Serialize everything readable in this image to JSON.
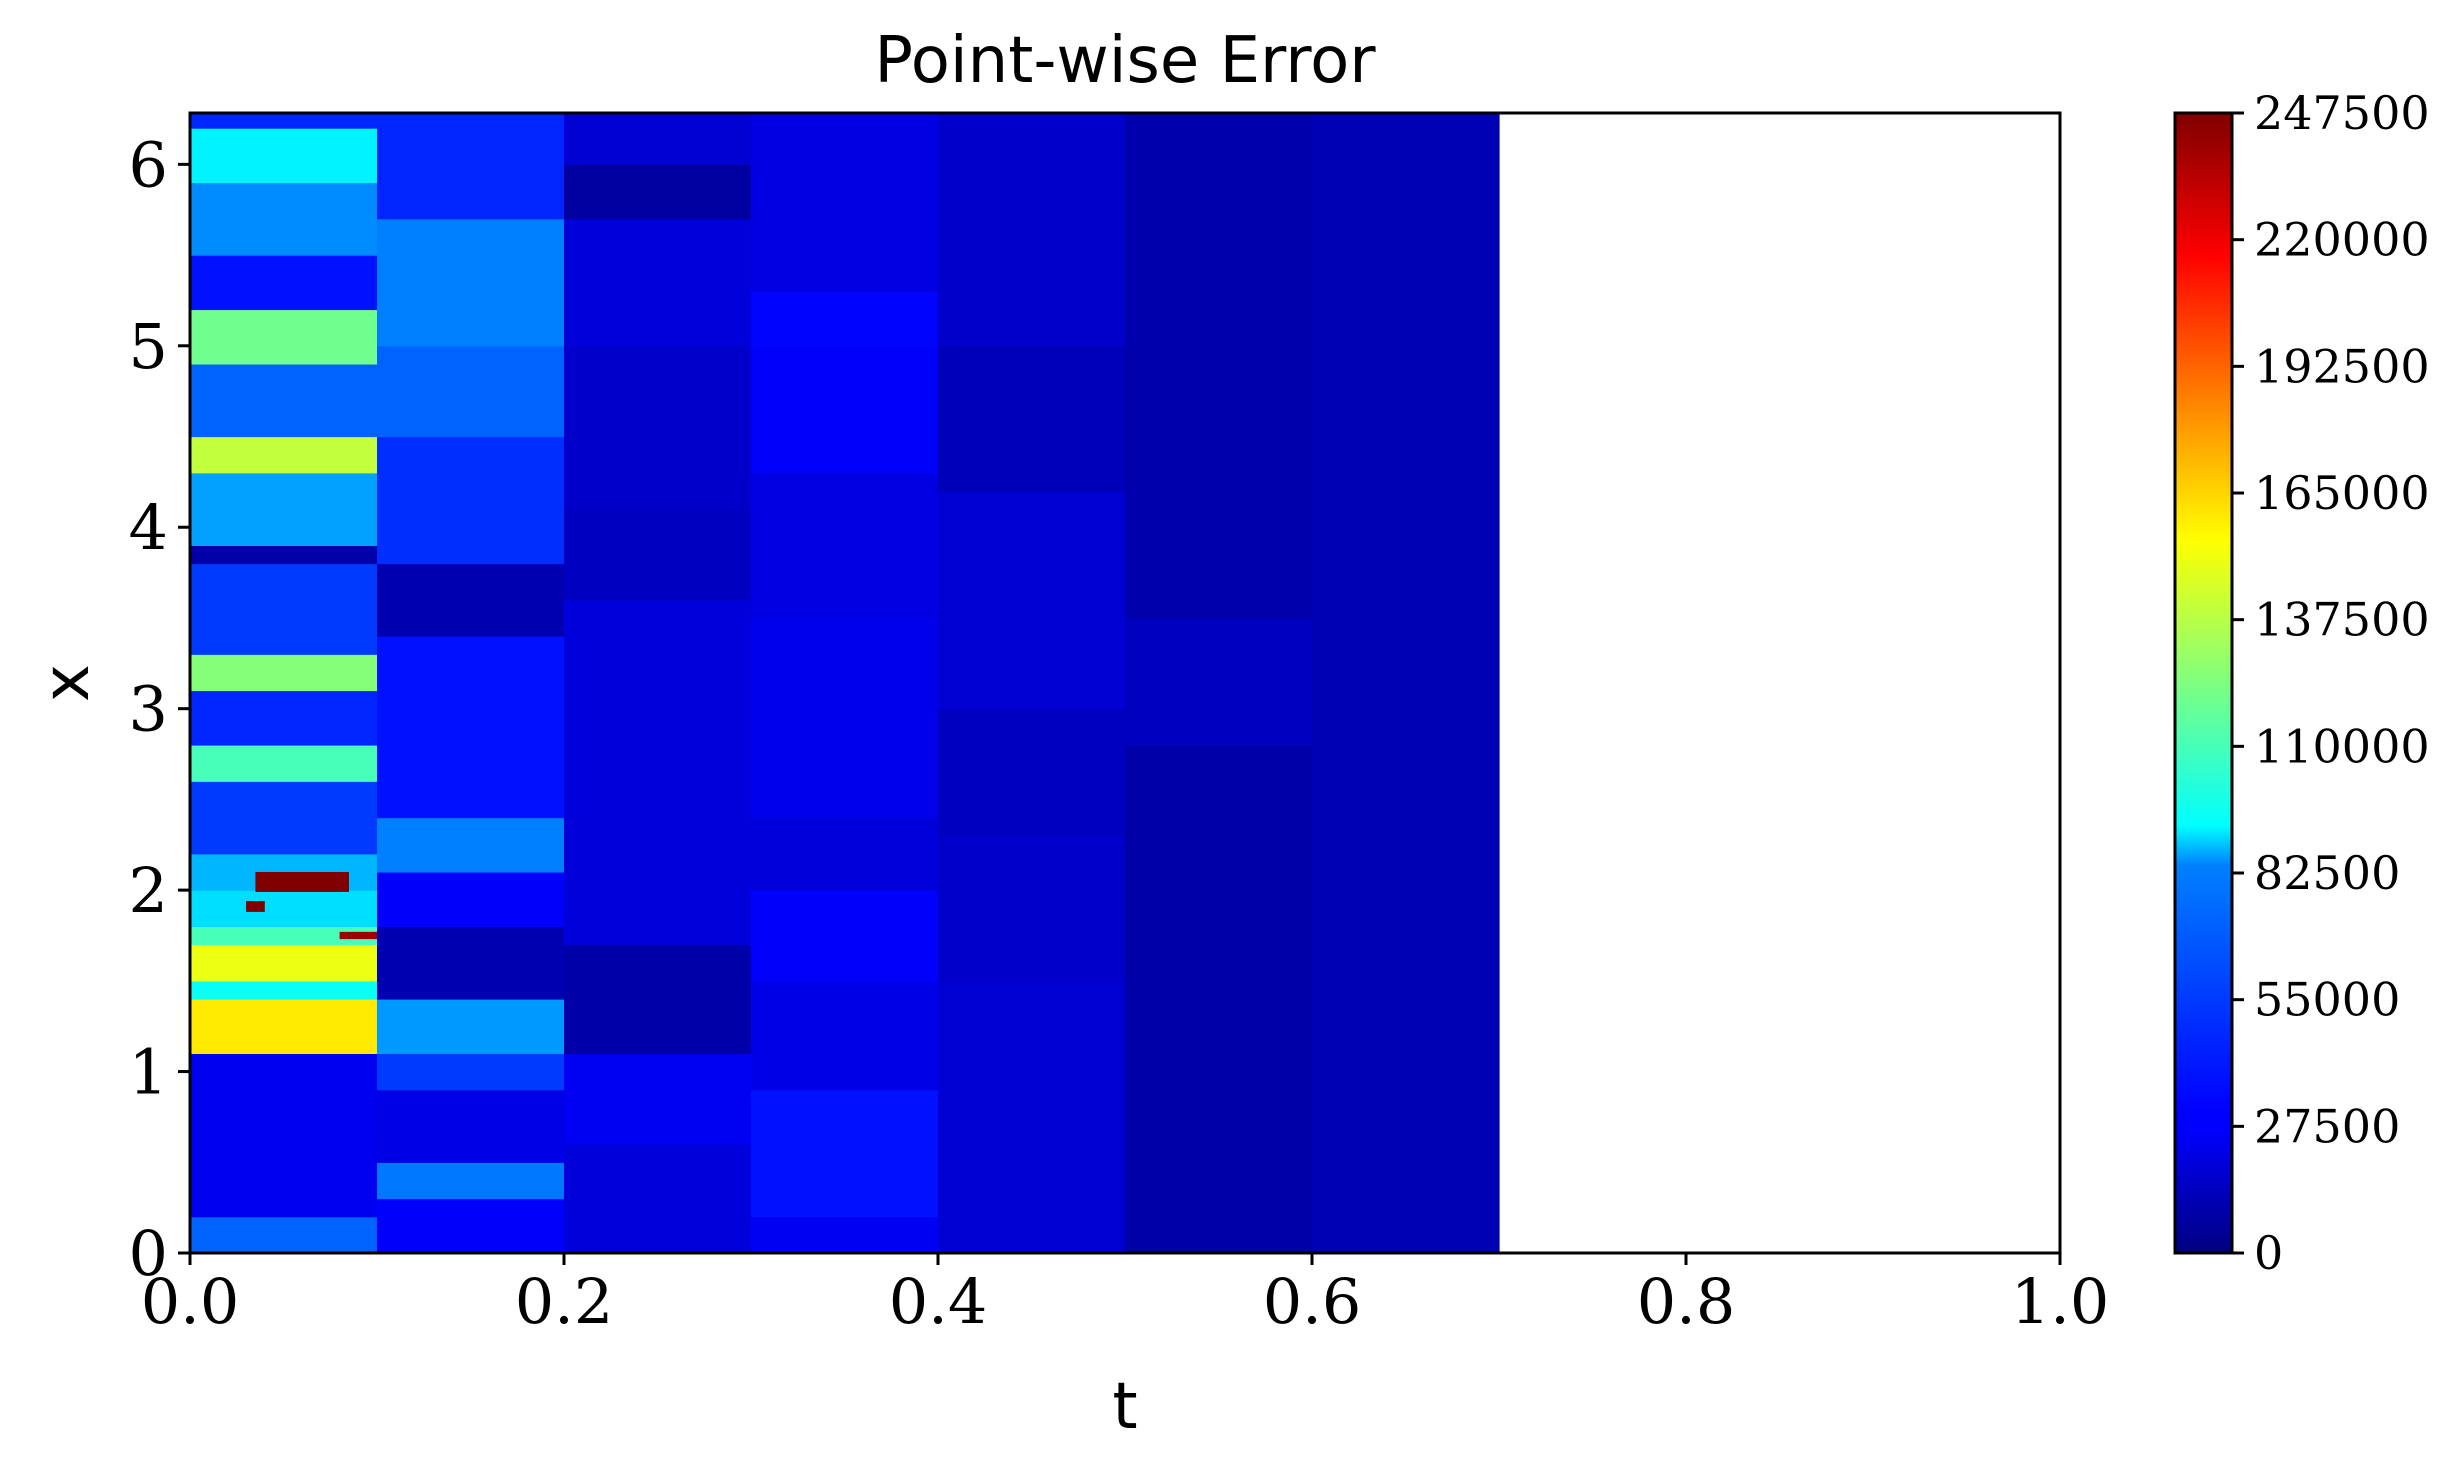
{
  "chart_data": {
    "type": "heatmap",
    "title": "Point-wise Error",
    "xlabel": "t",
    "ylabel": "x",
    "xlim": [
      0.0,
      1.0
    ],
    "ylim": [
      0,
      6.283
    ],
    "x_ticks": [
      "0.0",
      "0.2",
      "0.4",
      "0.6",
      "0.8",
      "1.0"
    ],
    "y_ticks": [
      "0",
      "1",
      "2",
      "3",
      "4",
      "5",
      "6"
    ],
    "colormap": "jet",
    "colorbar": {
      "min": 0,
      "max": 247500,
      "ticks": [
        "0",
        "27500",
        "55000",
        "82500",
        "110000",
        "137500",
        "165000",
        "192500",
        "220000",
        "247500"
      ]
    },
    "data_extent_t": [
      0.0,
      0.7
    ],
    "time_blocks": [
      {
        "t": [
          0.0,
          0.1
        ],
        "bands": [
          {
            "x": [
              0.0,
              0.2
            ],
            "v": 55000
          },
          {
            "x": [
              0.2,
              1.1
            ],
            "v": 27500
          },
          {
            "x": [
              1.1,
              1.4
            ],
            "v": 160000
          },
          {
            "x": [
              1.4,
              1.5
            ],
            "v": 95000
          },
          {
            "x": [
              1.5,
              1.7
            ],
            "v": 150000
          },
          {
            "x": [
              1.7,
              1.8
            ],
            "v": 110000
          },
          {
            "x": [
              1.8,
              2.0
            ],
            "v": 85000
          },
          {
            "x": [
              2.0,
              2.2
            ],
            "v": 75000
          },
          {
            "x": [
              2.2,
              2.6
            ],
            "v": 45000
          },
          {
            "x": [
              2.6,
              2.8
            ],
            "v": 110000
          },
          {
            "x": [
              2.8,
              3.1
            ],
            "v": 40000
          },
          {
            "x": [
              3.1,
              3.3
            ],
            "v": 125000
          },
          {
            "x": [
              3.3,
              3.8
            ],
            "v": 45000
          },
          {
            "x": [
              3.8,
              3.9
            ],
            "v": 10000
          },
          {
            "x": [
              3.9,
              4.3
            ],
            "v": 70000
          },
          {
            "x": [
              4.3,
              4.5
            ],
            "v": 140000
          },
          {
            "x": [
              4.5,
              4.9
            ],
            "v": 55000
          },
          {
            "x": [
              4.9,
              5.2
            ],
            "v": 120000
          },
          {
            "x": [
              5.2,
              5.5
            ],
            "v": 35000
          },
          {
            "x": [
              5.5,
              5.9
            ],
            "v": 65000
          },
          {
            "x": [
              5.9,
              6.2
            ],
            "v": 90000
          },
          {
            "x": [
              6.2,
              6.283
            ],
            "v": 40000
          }
        ]
      },
      {
        "t": [
          0.1,
          0.2
        ],
        "bands": [
          {
            "x": [
              0.0,
              0.3
            ],
            "v": 30000
          },
          {
            "x": [
              0.3,
              0.5
            ],
            "v": 60000
          },
          {
            "x": [
              0.5,
              0.9
            ],
            "v": 25000
          },
          {
            "x": [
              0.9,
              1.1
            ],
            "v": 45000
          },
          {
            "x": [
              1.1,
              1.4
            ],
            "v": 68000
          },
          {
            "x": [
              1.4,
              1.8
            ],
            "v": 12000
          },
          {
            "x": [
              1.8,
              2.1
            ],
            "v": 30000
          },
          {
            "x": [
              2.1,
              2.4
            ],
            "v": 62000
          },
          {
            "x": [
              2.4,
              3.4
            ],
            "v": 35000
          },
          {
            "x": [
              3.4,
              3.8
            ],
            "v": 12000
          },
          {
            "x": [
              3.8,
              4.5
            ],
            "v": 42000
          },
          {
            "x": [
              4.5,
              5.0
            ],
            "v": 55000
          },
          {
            "x": [
              5.0,
              5.7
            ],
            "v": 62000
          },
          {
            "x": [
              5.7,
              6.283
            ],
            "v": 40000
          }
        ]
      },
      {
        "t": [
          0.2,
          0.3
        ],
        "bands": [
          {
            "x": [
              0.0,
              0.6
            ],
            "v": 22000
          },
          {
            "x": [
              0.6,
              1.1
            ],
            "v": 28000
          },
          {
            "x": [
              1.1,
              1.7
            ],
            "v": 10000
          },
          {
            "x": [
              1.7,
              3.6
            ],
            "v": 22000
          },
          {
            "x": [
              3.6,
              4.1
            ],
            "v": 16000
          },
          {
            "x": [
              4.1,
              5.0
            ],
            "v": 18000
          },
          {
            "x": [
              5.0,
              5.7
            ],
            "v": 22000
          },
          {
            "x": [
              5.7,
              6.0
            ],
            "v": 8000
          },
          {
            "x": [
              6.0,
              6.283
            ],
            "v": 20000
          }
        ]
      },
      {
        "t": [
          0.3,
          0.4
        ],
        "bands": [
          {
            "x": [
              0.0,
              0.2
            ],
            "v": 28000
          },
          {
            "x": [
              0.2,
              0.9
            ],
            "v": 35000
          },
          {
            "x": [
              0.9,
              1.5
            ],
            "v": 25000
          },
          {
            "x": [
              1.5,
              2.0
            ],
            "v": 30000
          },
          {
            "x": [
              2.0,
              2.4
            ],
            "v": 22000
          },
          {
            "x": [
              2.4,
              3.5
            ],
            "v": 26000
          },
          {
            "x": [
              3.5,
              4.3
            ],
            "v": 24000
          },
          {
            "x": [
              4.3,
              5.0
            ],
            "v": 30000
          },
          {
            "x": [
              5.0,
              5.3
            ],
            "v": 32000
          },
          {
            "x": [
              5.3,
              6.283
            ],
            "v": 24000
          }
        ]
      },
      {
        "t": [
          0.4,
          0.5
        ],
        "bands": [
          {
            "x": [
              0.0,
              1.5
            ],
            "v": 20000
          },
          {
            "x": [
              1.5,
              2.3
            ],
            "v": 18000
          },
          {
            "x": [
              2.3,
              3.0
            ],
            "v": 16000
          },
          {
            "x": [
              3.0,
              4.2
            ],
            "v": 20000
          },
          {
            "x": [
              4.2,
              5.0
            ],
            "v": 14000
          },
          {
            "x": [
              5.0,
              6.283
            ],
            "v": 18000
          }
        ]
      },
      {
        "t": [
          0.5,
          0.6
        ],
        "bands": [
          {
            "x": [
              0.0,
              2.8
            ],
            "v": 10000
          },
          {
            "x": [
              2.8,
              3.5
            ],
            "v": 16000
          },
          {
            "x": [
              3.5,
              6.283
            ],
            "v": 11000
          }
        ]
      },
      {
        "t": [
          0.6,
          0.7
        ],
        "bands": [
          {
            "x": [
              0.0,
              6.283
            ],
            "v": 13000
          }
        ]
      }
    ],
    "spots": [
      {
        "t": [
          0.035,
          0.085
        ],
        "x": [
          1.99,
          2.1
        ],
        "v": 247500
      },
      {
        "t": [
          0.03,
          0.04
        ],
        "x": [
          1.88,
          1.94
        ],
        "v": 247500
      },
      {
        "t": [
          0.08,
          0.1
        ],
        "x": [
          1.73,
          1.77
        ],
        "v": 240000
      }
    ]
  }
}
